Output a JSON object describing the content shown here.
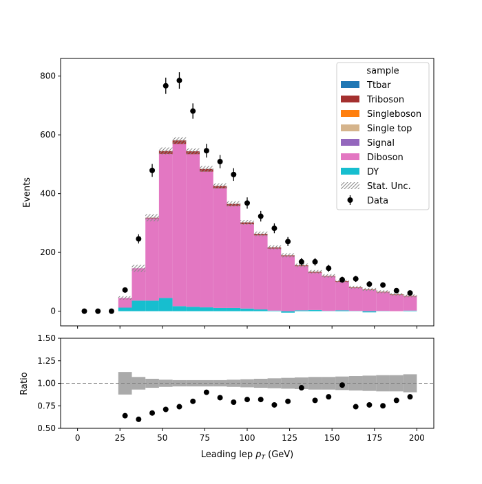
{
  "chart_data": [
    {
      "type": "bar",
      "stacked": true,
      "ylabel": "Events",
      "xlim": [
        -10,
        210
      ],
      "ylim": [
        -50,
        860
      ],
      "xticks": [
        0,
        25,
        50,
        75,
        100,
        125,
        150,
        175,
        200
      ],
      "yticks": [
        0,
        200,
        400,
        600,
        800
      ],
      "ytick_labels": [
        "0",
        "200",
        "400",
        "600",
        "800"
      ],
      "bin_edges": [
        0,
        8,
        16,
        24,
        32,
        40,
        48,
        56,
        64,
        72,
        80,
        88,
        96,
        104,
        112,
        120,
        128,
        136,
        144,
        152,
        160,
        168,
        176,
        184,
        192,
        200
      ],
      "series": [
        {
          "name": "DY",
          "color": "#17becf",
          "values": [
            0,
            0,
            0,
            12,
            36,
            36,
            45,
            17,
            15,
            13,
            11,
            11,
            9,
            6,
            2,
            -5,
            3,
            4,
            1,
            3,
            1,
            -4,
            1,
            0,
            2
          ]
        },
        {
          "name": "Diboson",
          "color": "#e377c2",
          "values": [
            0,
            0,
            0,
            33,
            110,
            280,
            490,
            552,
            519,
            462,
            407,
            347,
            287,
            252,
            211,
            187,
            150,
            127,
            117,
            97,
            78,
            72,
            63,
            55,
            48
          ]
        },
        {
          "name": "Signal",
          "color": "#9467bd",
          "values": [
            0,
            0,
            0,
            0,
            0,
            0,
            0,
            0,
            0,
            0,
            0,
            0,
            0,
            0,
            0,
            0,
            0,
            0,
            0,
            0,
            0,
            0,
            0,
            0,
            0
          ]
        },
        {
          "name": "Single top",
          "color": "#d5b48c",
          "values": [
            0,
            0,
            0,
            0,
            0,
            0,
            0,
            0,
            0,
            0,
            0,
            0,
            0,
            0,
            0,
            0,
            0,
            0,
            0,
            0,
            0,
            0,
            0,
            0,
            0
          ]
        },
        {
          "name": "Singleboson",
          "color": "#ff7f0e",
          "values": [
            0,
            0,
            0,
            0,
            0,
            0,
            0,
            0,
            0,
            0,
            0,
            0,
            0,
            0,
            0,
            0,
            0,
            0,
            0,
            0,
            0,
            0,
            0,
            0,
            0
          ]
        },
        {
          "name": "Triboson",
          "color": "#a4302f",
          "values": [
            0,
            0,
            0,
            0,
            0,
            2,
            10,
            12,
            10,
            9,
            8,
            7,
            6,
            5,
            4,
            3,
            3,
            3,
            2,
            2,
            2,
            2,
            2,
            2,
            2
          ]
        },
        {
          "name": "Ttbar",
          "color": "#1f77b4",
          "values": [
            0,
            0,
            0,
            0,
            0,
            0,
            0,
            0,
            0,
            0,
            0,
            0,
            0,
            0,
            0,
            0,
            0,
            0,
            0,
            0,
            0,
            0,
            0,
            0,
            0
          ]
        }
      ],
      "uncertainty": [
        0,
        0,
        0,
        6,
        12,
        12,
        12,
        11,
        10,
        10,
        9,
        9,
        8,
        8,
        7,
        7,
        6,
        6,
        6,
        5,
        5,
        5,
        5,
        5,
        5
      ],
      "data_points": {
        "x": [
          4,
          12,
          20,
          28,
          36,
          44,
          52,
          60,
          68,
          76,
          84,
          92,
          100,
          108,
          116,
          124,
          132,
          140,
          148,
          156,
          164,
          172,
          180,
          188,
          196
        ],
        "y": [
          0,
          0,
          0,
          72,
          246,
          479,
          767,
          785,
          681,
          546,
          509,
          465,
          368,
          323,
          282,
          237,
          168,
          168,
          146,
          107,
          110,
          92,
          89,
          70,
          62
        ]
      },
      "legend": {
        "title": "sample",
        "position": "top-right",
        "entries": [
          "Ttbar",
          "Triboson",
          "Singleboson",
          "Single top",
          "Signal",
          "Diboson",
          "DY",
          "Stat. Unc.",
          "Data"
        ]
      }
    },
    {
      "type": "scatter",
      "xlabel_prefix": "Leading lep ",
      "xlabel_sym": "p",
      "xlabel_sub": "T",
      "xlabel_suffix": " (GeV)",
      "ylabel": "Ratio",
      "xlim": [
        -10,
        210
      ],
      "ylim": [
        0.5,
        1.5
      ],
      "xticks": [
        0,
        25,
        50,
        75,
        100,
        125,
        150,
        175,
        200
      ],
      "xtick_labels": [
        "0",
        "25",
        "50",
        "75",
        "100",
        "125",
        "150",
        "175",
        "200"
      ],
      "yticks": [
        0.5,
        0.75,
        1.0,
        1.25,
        1.5
      ],
      "ytick_labels": [
        "0.50",
        "0.75",
        "1.00",
        "1.25",
        "1.50"
      ],
      "reference_line": 1.0,
      "band_bin_edges": [
        24,
        32,
        40,
        48,
        56,
        64,
        72,
        80,
        88,
        96,
        104,
        112,
        120,
        128,
        136,
        144,
        152,
        160,
        168,
        176,
        184,
        192,
        200
      ],
      "band_half_width": [
        0.125,
        0.07,
        0.05,
        0.04,
        0.035,
        0.035,
        0.035,
        0.035,
        0.04,
        0.045,
        0.05,
        0.055,
        0.06,
        0.065,
        0.07,
        0.07,
        0.075,
        0.08,
        0.085,
        0.09,
        0.09,
        0.1,
        0.115
      ],
      "points": {
        "x": [
          28,
          36,
          44,
          52,
          60,
          68,
          76,
          84,
          92,
          100,
          108,
          116,
          124,
          132,
          140,
          148,
          156,
          164,
          172,
          180,
          188,
          196
        ],
        "y": [
          0.64,
          0.6,
          0.67,
          0.71,
          0.74,
          0.8,
          0.9,
          0.84,
          0.79,
          0.82,
          0.82,
          0.76,
          0.8,
          0.95,
          0.81,
          0.85,
          0.98,
          0.74,
          0.76,
          0.75,
          0.81,
          0.85
        ]
      }
    }
  ]
}
